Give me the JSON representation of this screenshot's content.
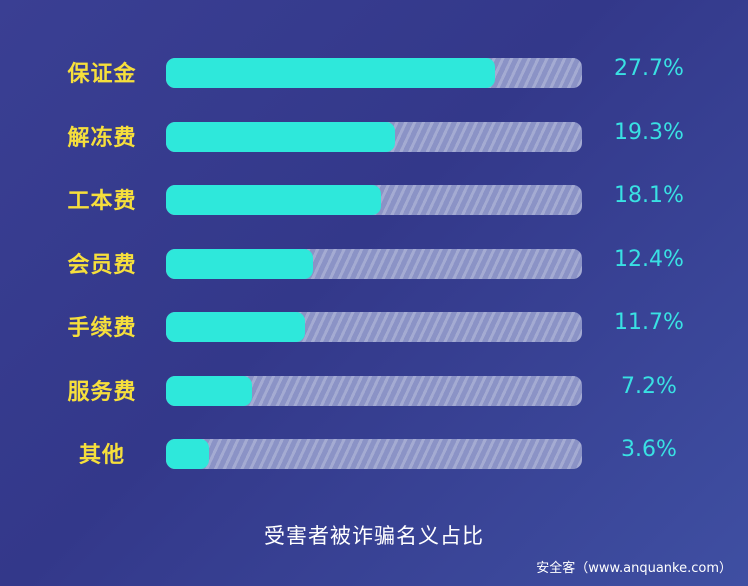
{
  "chart_data": {
    "type": "bar",
    "orientation": "horizontal",
    "categories": [
      "保证金",
      "解冻费",
      "工本费",
      "会员费",
      "手续费",
      "服务费",
      "其他"
    ],
    "values": [
      27.7,
      19.3,
      18.1,
      12.4,
      11.7,
      7.2,
      3.6
    ],
    "value_labels": [
      "27.7%",
      "19.3%",
      "18.1%",
      "12.4%",
      "11.7%",
      "7.2%",
      "3.6%"
    ],
    "max_display": 35,
    "title": "受害者被诈骗名义占比",
    "source": "安全客（www.anquanke.com）",
    "colors": {
      "bar": "#2ee8db",
      "label": "#f6df3c",
      "value": "#39e1e3"
    }
  }
}
